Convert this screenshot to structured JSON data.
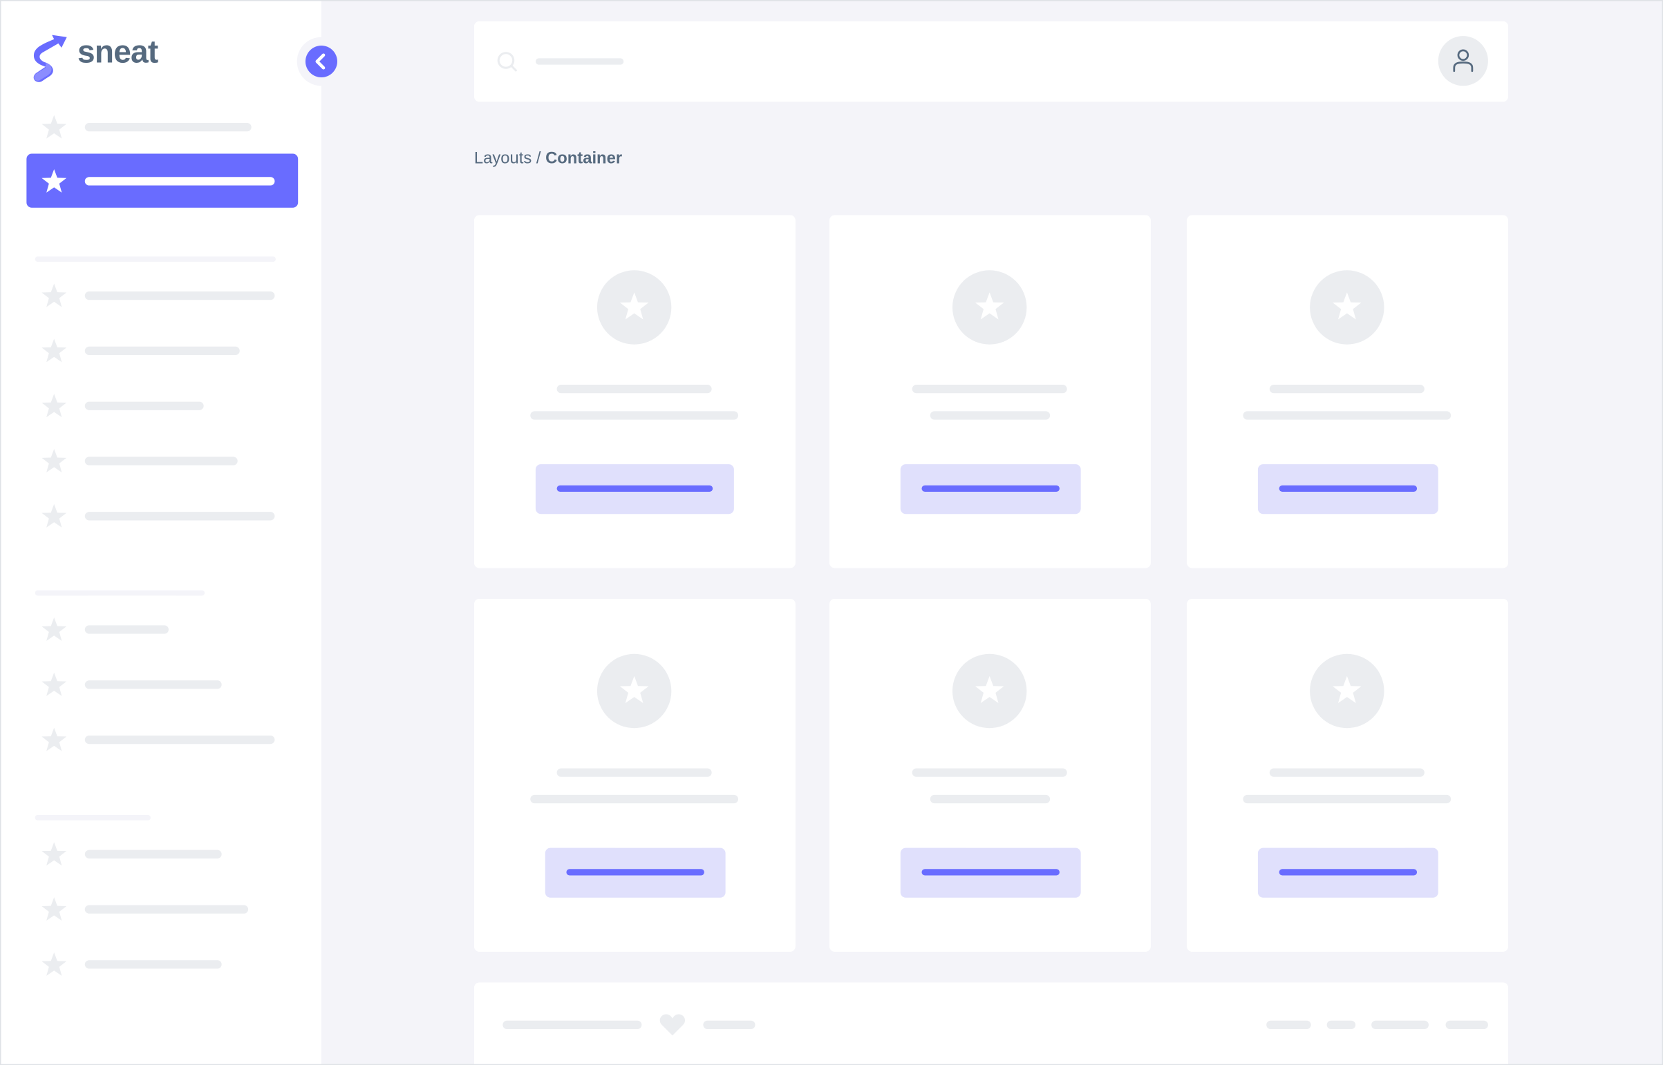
{
  "app": {
    "logo_text": "sneat",
    "logo_icon": "sneat-logo-icon"
  },
  "colors": {
    "primary": "#696cff",
    "primary_light": "#e0e0fc",
    "skeleton": "#ebedf0",
    "background": "#f4f4f9",
    "text": "#566a7f"
  },
  "sidebar": {
    "collapse_icon": "chevron-left-icon",
    "active_index": 1,
    "item_icon": "star-icon",
    "item_count": 13,
    "section_count": 3
  },
  "header": {
    "search_icon": "search-icon",
    "avatar_icon": "user-icon"
  },
  "breadcrumb": {
    "parent": "Layouts",
    "separator": " / ",
    "current": "Container"
  },
  "cards": [
    {
      "icon": "star-icon"
    },
    {
      "icon": "star-icon"
    },
    {
      "icon": "star-icon"
    },
    {
      "icon": "star-icon"
    },
    {
      "icon": "star-icon"
    },
    {
      "icon": "star-icon"
    }
  ],
  "footer": {
    "icon": "heart-icon"
  }
}
